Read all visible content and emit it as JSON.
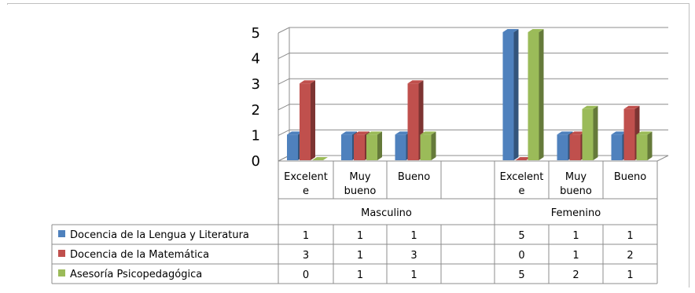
{
  "chart_data": {
    "type": "bar",
    "style": "3d-clustered-column-with-data-table",
    "groups": [
      "Masculino",
      "Femenino"
    ],
    "categories": [
      {
        "group": "Masculino",
        "label_lines": [
          "Excelent",
          "e"
        ]
      },
      {
        "group": "Masculino",
        "label_lines": [
          "Muy",
          "bueno"
        ]
      },
      {
        "group": "Masculino",
        "label_lines": [
          "Bueno"
        ]
      },
      {
        "group": "Masculino",
        "label_lines": []
      },
      {
        "group": "Femenino",
        "label_lines": [
          "Excelent",
          "e"
        ]
      },
      {
        "group": "Femenino",
        "label_lines": [
          "Muy",
          "bueno"
        ]
      },
      {
        "group": "Femenino",
        "label_lines": [
          "Bueno"
        ]
      }
    ],
    "series": [
      {
        "name": "Docencia de la Lengua y Literatura",
        "color": "#4f81bd",
        "values": [
          1,
          1,
          1,
          null,
          5,
          1,
          1
        ]
      },
      {
        "name": "Docencia de la Matemática",
        "color": "#c0504d",
        "values": [
          3,
          1,
          3,
          null,
          0,
          1,
          2
        ]
      },
      {
        "name": "Asesoría Psicopedagógica",
        "color": "#9bbb59",
        "values": [
          0,
          1,
          1,
          null,
          5,
          2,
          1
        ]
      }
    ],
    "yticks": [
      "0",
      "1",
      "2",
      "3",
      "4",
      "5"
    ],
    "ylim": [
      0,
      5
    ],
    "grid": true,
    "legend": "data-table-left",
    "title": "",
    "xlabel": "",
    "ylabel": ""
  }
}
